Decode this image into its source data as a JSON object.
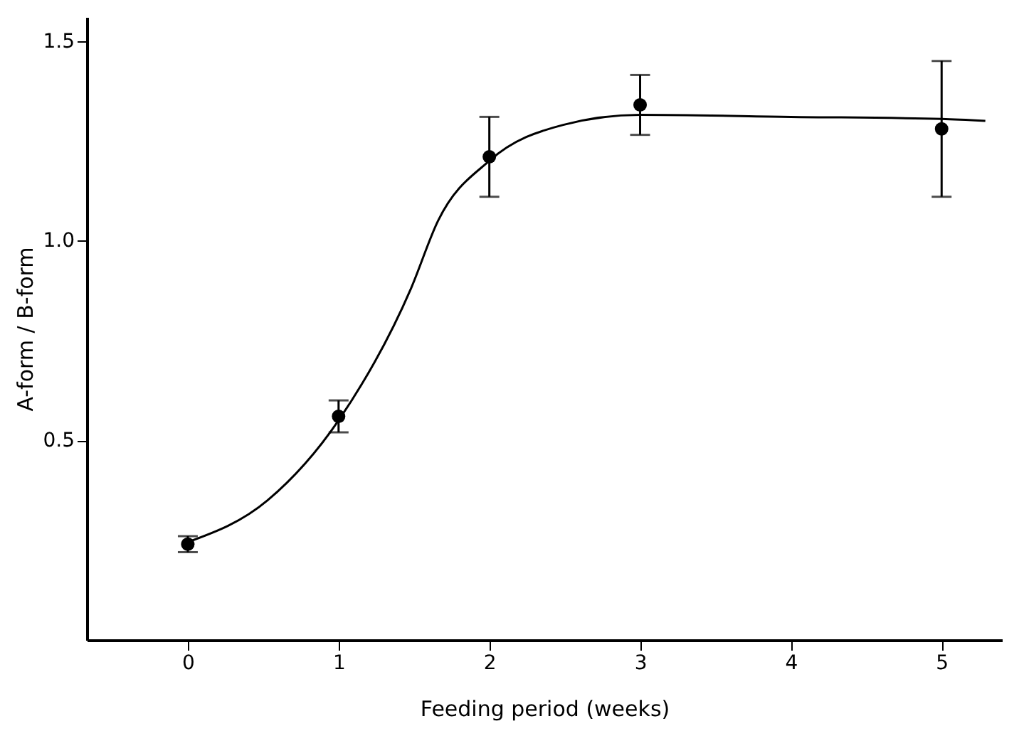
{
  "chart_data": {
    "type": "scatter",
    "xlabel": "Feeding period (weeks)",
    "ylabel": "A-form / B-form",
    "x": [
      0,
      1,
      2,
      3,
      5
    ],
    "series": [
      {
        "color": "#000000",
        "marker": "circle",
        "values": [
          0.24,
          0.56,
          1.21,
          1.34,
          1.28
        ],
        "errors": [
          0.02,
          0.04,
          0.1,
          0.075,
          0.17
        ]
      },
      {
        "type": "line",
        "color": "#000000",
        "marker": "none",
        "line_style": "solid",
        "x": [
          0,
          0.53,
          1,
          1.48,
          1.66,
          2,
          2.49,
          3,
          4,
          5,
          5.29
        ],
        "values": [
          0.245,
          0.35,
          0.55,
          0.88,
          1.05,
          1.2,
          1.29,
          1.315,
          1.31,
          1.305,
          1.3
        ]
      }
    ],
    "xlim": [
      -0.67,
      5.4
    ],
    "ylim": [
      0,
      1.56
    ],
    "xticks": [
      0,
      1,
      2,
      3,
      4,
      5
    ],
    "yticks": [
      0.5,
      {
        "value": 1,
        "label": "1.0"
      },
      {
        "value": 1.5,
        "label": "1.5"
      }
    ],
    "grid": false
  }
}
